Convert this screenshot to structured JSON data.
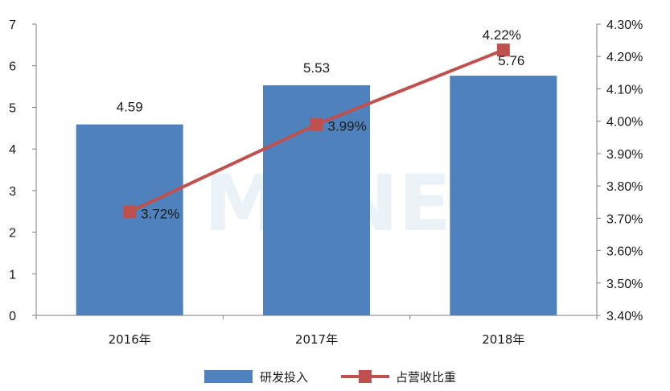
{
  "chart_data": {
    "type": "bar+line",
    "categories": [
      "2016年",
      "2017年",
      "2018年"
    ],
    "bar_series": {
      "name": "研发投入",
      "values": [
        4.59,
        5.53,
        5.76
      ],
      "labels": [
        "4.59",
        "5.53",
        "5.76"
      ],
      "color": "#4f81bd"
    },
    "line_series": {
      "name": "占营收比重",
      "values": [
        3.72,
        3.99,
        4.22
      ],
      "labels": [
        "3.72%",
        "3.99%",
        "4.22%"
      ],
      "color": "#c0504d"
    },
    "y_left": {
      "min": 0,
      "max": 7,
      "ticks": [
        "0",
        "1",
        "2",
        "3",
        "4",
        "5",
        "6",
        "7"
      ]
    },
    "y_right": {
      "min": 3.4,
      "max": 4.3,
      "ticks": [
        "3.40%",
        "3.50%",
        "3.60%",
        "3.70%",
        "3.80%",
        "3.90%",
        "4.00%",
        "4.10%",
        "4.20%",
        "4.30%"
      ]
    },
    "grid": false,
    "legend_position": "bottom",
    "watermark": "MENET"
  }
}
